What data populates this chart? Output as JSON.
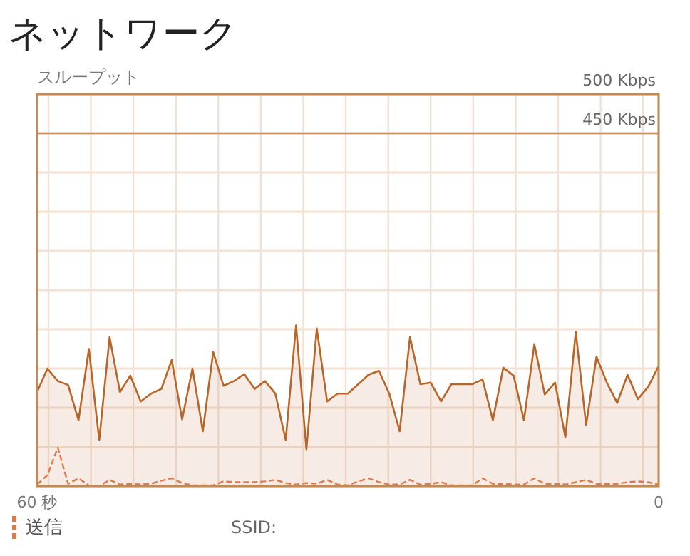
{
  "chart_data": {
    "type": "area",
    "title": "ネットワーク",
    "ylabel": "スループット",
    "x": [
      60,
      59,
      58,
      57,
      56,
      55,
      54,
      53,
      52,
      51,
      50,
      49,
      48,
      47,
      46,
      45,
      44,
      43,
      42,
      41,
      40,
      39,
      38,
      37,
      36,
      35,
      34,
      33,
      32,
      31,
      30,
      29,
      28,
      27,
      26,
      25,
      24,
      23,
      22,
      21,
      20,
      19,
      18,
      17,
      16,
      15,
      14,
      13,
      12,
      11,
      10,
      9,
      8,
      7,
      6,
      5,
      4,
      3,
      2,
      1,
      0
    ],
    "series": [
      {
        "color": "#b8652a",
        "values": [
          120,
          150,
          134,
          129,
          84,
          175,
          59,
          190,
          120,
          141,
          108,
          118,
          124,
          161,
          85,
          150,
          70,
          171,
          128,
          134,
          143,
          124,
          134,
          118,
          59,
          205,
          47,
          201,
          108,
          118,
          118,
          130,
          142,
          147,
          118,
          70,
          190,
          130,
          132,
          108,
          130,
          130,
          130,
          136,
          84,
          151,
          141,
          84,
          181,
          117,
          132,
          62,
          197,
          78,
          165,
          132,
          106,
          142,
          111,
          127,
          153
        ]
      },
      {
        "name": "送信",
        "type": "line",
        "line_style": "dashed",
        "color": "#e07848",
        "values": [
          2,
          14,
          49,
          3,
          10,
          1,
          0,
          8,
          2,
          3,
          2,
          3,
          7,
          10,
          4,
          1,
          1,
          1,
          6,
          5,
          5,
          5,
          6,
          8,
          4,
          2,
          4,
          3,
          8,
          2,
          1,
          6,
          10,
          5,
          2,
          2,
          8,
          2,
          3,
          5,
          1,
          1,
          1,
          10,
          3,
          3,
          2,
          2,
          10,
          3,
          3,
          2,
          5,
          8,
          3,
          3,
          3,
          5,
          6,
          5,
          2
        ]
      }
    ],
    "xlim": [
      60,
      0
    ],
    "xticks": [
      {
        "value": 60,
        "label": "60 秒"
      },
      {
        "value": 58.9,
        "label": null
      },
      {
        "value": 54.8,
        "label": null
      },
      {
        "value": 50.7,
        "label": null
      },
      {
        "value": 46.6,
        "label": null
      },
      {
        "value": 42.5,
        "label": null
      },
      {
        "value": 38.4,
        "label": null
      },
      {
        "value": 34.3,
        "label": null
      },
      {
        "value": 30.2,
        "label": null
      },
      {
        "value": 26.1,
        "label": null
      },
      {
        "value": 22,
        "label": null
      },
      {
        "value": 17.9,
        "label": null
      },
      {
        "value": 13.8,
        "label": null
      },
      {
        "value": 9.7,
        "label": null
      },
      {
        "value": 5.6,
        "label": null
      },
      {
        "value": 1.5,
        "label": null
      },
      0
    ],
    "ylim": [
      0,
      500
    ],
    "yticks": [
      {
        "value": 0,
        "label": null
      },
      {
        "value": 50,
        "label": null
      },
      {
        "value": 100,
        "label": null
      },
      {
        "value": 150,
        "label": null
      },
      {
        "value": 200,
        "label": null
      },
      {
        "value": 250,
        "label": null
      },
      {
        "value": 300,
        "label": null
      },
      {
        "value": 350,
        "label": null
      },
      {
        "value": 400,
        "label": null
      },
      {
        "value": 450,
        "label": "450 Kbps"
      },
      {
        "value": 500,
        "label": "500 Kbps"
      }
    ],
    "ref_lines": [
      {
        "axis": "y",
        "value": 450,
        "color": "#c8905c"
      }
    ],
    "grid": true,
    "legend": "bottom left",
    "annotations": [
      "SSID:"
    ]
  }
}
